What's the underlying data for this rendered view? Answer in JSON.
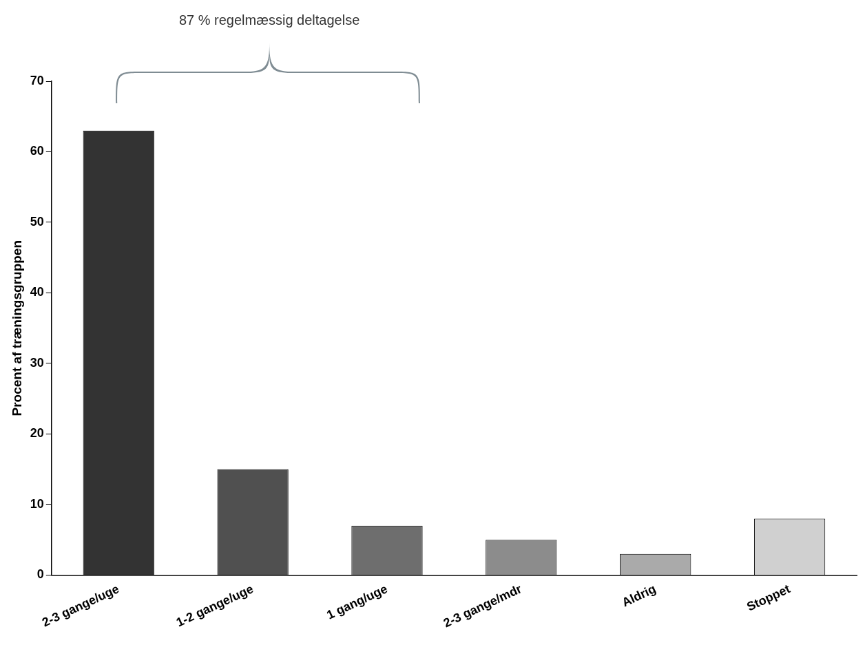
{
  "chart_data": {
    "type": "bar",
    "ylabel": "Procent af træningsgruppen",
    "categories": [
      "2-3 gange/uge",
      "1-2 gange/uge",
      "1 gang/uge",
      "2-3 gange/mdr",
      "Aldrig",
      "Stoppet"
    ],
    "values": [
      63,
      15,
      7,
      5,
      3,
      8
    ],
    "colors": [
      "#333333",
      "#505050",
      "#6e6e6e",
      "#8c8c8c",
      "#aaaaaa",
      "#d0d0d0"
    ],
    "ylim": [
      0,
      70
    ],
    "yticks": [
      0,
      10,
      20,
      30,
      40,
      50,
      60,
      70
    ],
    "grid": false,
    "legend": false,
    "annotations": [
      "87 % regelmæssig deltagelse"
    ]
  }
}
